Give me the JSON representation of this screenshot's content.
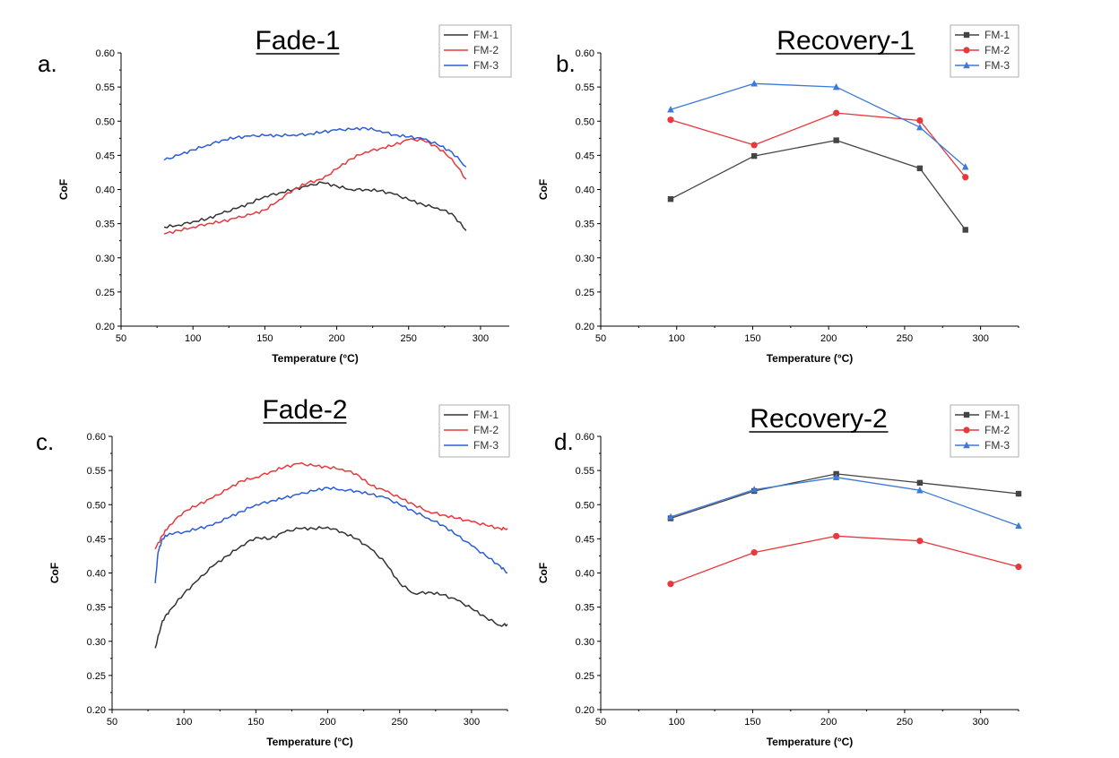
{
  "chart_data": [
    {
      "type": "line",
      "letter": "a.",
      "title": "Fade-1",
      "xlabel": "Temperature (°C)",
      "ylabel": "CoF",
      "xlim": [
        50,
        320
      ],
      "ylim": [
        0.2,
        0.6
      ],
      "xticks": [
        50,
        100,
        150,
        200,
        250,
        300
      ],
      "yticks": [
        "0.20",
        "0.25",
        "0.30",
        "0.35",
        "0.40",
        "0.45",
        "0.50",
        "0.55",
        "0.60"
      ],
      "grid": false,
      "legend": "top-right",
      "markers": false,
      "series": [
        {
          "name": "FM-1",
          "color": "#333333",
          "x": [
            80,
            90,
            100,
            110,
            120,
            130,
            140,
            150,
            160,
            170,
            180,
            190,
            200,
            210,
            220,
            230,
            240,
            250,
            260,
            270,
            280,
            290
          ],
          "y": [
            0.345,
            0.348,
            0.353,
            0.357,
            0.365,
            0.372,
            0.38,
            0.39,
            0.395,
            0.4,
            0.405,
            0.41,
            0.405,
            0.4,
            0.4,
            0.398,
            0.393,
            0.385,
            0.378,
            0.373,
            0.365,
            0.34
          ]
        },
        {
          "name": "FM-2",
          "color": "#e8383b",
          "x": [
            80,
            90,
            100,
            110,
            120,
            130,
            140,
            150,
            160,
            170,
            180,
            190,
            200,
            210,
            220,
            230,
            240,
            250,
            260,
            270,
            280,
            290
          ],
          "y": [
            0.335,
            0.34,
            0.345,
            0.35,
            0.353,
            0.358,
            0.363,
            0.37,
            0.385,
            0.4,
            0.41,
            0.415,
            0.43,
            0.445,
            0.455,
            0.46,
            0.465,
            0.473,
            0.472,
            0.462,
            0.445,
            0.415
          ]
        },
        {
          "name": "FM-3",
          "color": "#2a5ed6",
          "x": [
            80,
            90,
            100,
            110,
            120,
            130,
            140,
            150,
            160,
            170,
            180,
            190,
            200,
            210,
            220,
            230,
            240,
            250,
            260,
            270,
            280,
            290
          ],
          "y": [
            0.443,
            0.45,
            0.458,
            0.465,
            0.472,
            0.476,
            0.478,
            0.479,
            0.479,
            0.48,
            0.481,
            0.484,
            0.487,
            0.488,
            0.49,
            0.486,
            0.48,
            0.477,
            0.474,
            0.466,
            0.455,
            0.433
          ]
        }
      ]
    },
    {
      "type": "line",
      "letter": "b.",
      "title": "Recovery-1",
      "xlabel": "Temperature (°C)",
      "ylabel": "CoF",
      "xlim": [
        50,
        325
      ],
      "ylim": [
        0.2,
        0.6
      ],
      "xticks": [
        50,
        100,
        150,
        200,
        250,
        300
      ],
      "yticks": [
        "0.20",
        "0.25",
        "0.30",
        "0.35",
        "0.40",
        "0.45",
        "0.50",
        "0.55",
        "0.60"
      ],
      "grid": false,
      "legend": "top-right",
      "markers": true,
      "series": [
        {
          "name": "FM-1",
          "color": "#444444",
          "marker": "square",
          "x": [
            96,
            151,
            205,
            260,
            290
          ],
          "y": [
            0.386,
            0.449,
            0.472,
            0.431,
            0.341
          ]
        },
        {
          "name": "FM-2",
          "color": "#e8383b",
          "marker": "circle",
          "x": [
            96,
            151,
            205,
            260,
            290
          ],
          "y": [
            0.502,
            0.465,
            0.512,
            0.501,
            0.418
          ]
        },
        {
          "name": "FM-3",
          "color": "#3b7ad8",
          "marker": "triangle",
          "x": [
            96,
            151,
            205,
            260,
            290
          ],
          "y": [
            0.517,
            0.555,
            0.55,
            0.491,
            0.433
          ]
        }
      ]
    },
    {
      "type": "line",
      "letter": "c.",
      "title": "Fade-2",
      "xlabel": "Temperature (°C)",
      "ylabel": "CoF",
      "xlim": [
        50,
        325
      ],
      "ylim": [
        0.2,
        0.6
      ],
      "xticks": [
        50,
        100,
        150,
        200,
        250,
        300
      ],
      "yticks": [
        "0.20",
        "0.25",
        "0.30",
        "0.35",
        "0.40",
        "0.45",
        "0.50",
        "0.55",
        "0.60"
      ],
      "grid": false,
      "legend": "top-right",
      "markers": false,
      "series": [
        {
          "name": "FM-1",
          "color": "#333333",
          "x": [
            80,
            85,
            90,
            100,
            110,
            120,
            130,
            140,
            150,
            160,
            170,
            180,
            190,
            200,
            210,
            220,
            230,
            240,
            250,
            260,
            270,
            280,
            290,
            300,
            310,
            320,
            325
          ],
          "y": [
            0.29,
            0.33,
            0.345,
            0.37,
            0.39,
            0.41,
            0.425,
            0.44,
            0.452,
            0.45,
            0.46,
            0.465,
            0.465,
            0.467,
            0.46,
            0.45,
            0.435,
            0.415,
            0.385,
            0.37,
            0.372,
            0.368,
            0.36,
            0.348,
            0.335,
            0.323,
            0.325
          ]
        },
        {
          "name": "FM-2",
          "color": "#e8383b",
          "x": [
            80,
            85,
            90,
            100,
            110,
            120,
            130,
            140,
            150,
            160,
            170,
            180,
            190,
            200,
            210,
            220,
            230,
            240,
            250,
            260,
            270,
            280,
            290,
            300,
            310,
            320,
            325
          ],
          "y": [
            0.435,
            0.455,
            0.47,
            0.49,
            0.5,
            0.51,
            0.522,
            0.535,
            0.54,
            0.548,
            0.555,
            0.56,
            0.557,
            0.555,
            0.552,
            0.545,
            0.528,
            0.52,
            0.51,
            0.5,
            0.49,
            0.485,
            0.48,
            0.475,
            0.47,
            0.465,
            0.465
          ]
        },
        {
          "name": "FM-3",
          "color": "#2a5ed6",
          "x": [
            80,
            82,
            85,
            90,
            100,
            110,
            120,
            130,
            140,
            150,
            160,
            170,
            180,
            190,
            200,
            210,
            220,
            230,
            240,
            250,
            260,
            270,
            280,
            290,
            300,
            310,
            320,
            325
          ],
          "y": [
            0.385,
            0.43,
            0.45,
            0.458,
            0.46,
            0.465,
            0.47,
            0.48,
            0.49,
            0.5,
            0.505,
            0.51,
            0.515,
            0.52,
            0.525,
            0.522,
            0.52,
            0.515,
            0.51,
            0.5,
            0.49,
            0.48,
            0.47,
            0.455,
            0.44,
            0.425,
            0.41,
            0.4
          ]
        }
      ]
    },
    {
      "type": "line",
      "letter": "d.",
      "title": "Recovery-2",
      "xlabel": "Temperature (°C)",
      "ylabel": "CoF",
      "xlim": [
        50,
        325
      ],
      "ylim": [
        0.2,
        0.6
      ],
      "xticks": [
        50,
        100,
        150,
        200,
        250,
        300
      ],
      "yticks": [
        "0.20",
        "0.25",
        "0.30",
        "0.35",
        "0.40",
        "0.45",
        "0.50",
        "0.55",
        "0.60"
      ],
      "grid": false,
      "legend": "top-right",
      "markers": true,
      "series": [
        {
          "name": "FM-1",
          "color": "#444444",
          "marker": "square",
          "x": [
            96,
            151,
            205,
            260,
            325
          ],
          "y": [
            0.48,
            0.52,
            0.545,
            0.532,
            0.516
          ]
        },
        {
          "name": "FM-2",
          "color": "#e8383b",
          "marker": "circle",
          "x": [
            96,
            151,
            205,
            260,
            325
          ],
          "y": [
            0.384,
            0.43,
            0.454,
            0.447,
            0.409
          ]
        },
        {
          "name": "FM-3",
          "color": "#3b7ad8",
          "marker": "triangle",
          "x": [
            96,
            151,
            205,
            260,
            325
          ],
          "y": [
            0.482,
            0.522,
            0.54,
            0.521,
            0.469
          ]
        }
      ]
    }
  ]
}
